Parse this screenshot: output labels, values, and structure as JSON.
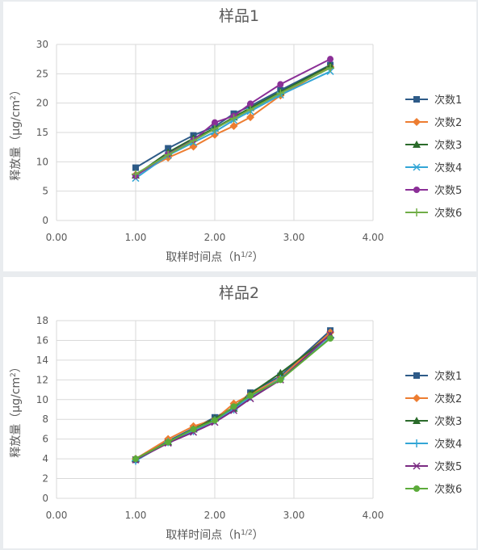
{
  "chart_data": [
    {
      "type": "line",
      "title": "样品1",
      "xlabel": "取样时间点（h1/2）",
      "ylabel": "释放量（μg/cm2）",
      "xlim": [
        0,
        4
      ],
      "ylim": [
        0,
        30
      ],
      "x_ticks": [
        "0.00",
        "1.00",
        "2.00",
        "3.00",
        "4.00"
      ],
      "y_ticks": [
        "0",
        "5",
        "10",
        "15",
        "20",
        "25",
        "30"
      ],
      "grid": true,
      "legend_position": "right",
      "x": [
        1.0,
        1.41,
        1.73,
        2.0,
        2.24,
        2.45,
        2.83,
        3.46
      ],
      "series": [
        {
          "name": "次数1",
          "color": "#2e5b88",
          "marker": "square",
          "values": [
            9.0,
            12.3,
            14.5,
            16.0,
            18.2,
            19.5,
            22.2,
            26.5
          ]
        },
        {
          "name": "次数2",
          "color": "#ed7d31",
          "marker": "diamond",
          "values": [
            7.8,
            10.7,
            12.6,
            14.6,
            16.1,
            17.6,
            21.3,
            26.2
          ]
        },
        {
          "name": "次数3",
          "color": "#2b6b2b",
          "marker": "triangle",
          "values": [
            7.7,
            11.6,
            14.0,
            15.7,
            17.6,
            19.2,
            21.9,
            26.4
          ]
        },
        {
          "name": "次数4",
          "color": "#33a6d6",
          "marker": "x",
          "values": [
            7.2,
            11.1,
            13.3,
            15.1,
            17.1,
            18.6,
            21.4,
            25.4
          ]
        },
        {
          "name": "次数5",
          "color": "#8b2f97",
          "marker": "circle",
          "values": [
            7.6,
            11.3,
            13.7,
            16.7,
            17.8,
            19.9,
            23.2,
            27.5
          ]
        },
        {
          "name": "次数6",
          "color": "#70ad47",
          "marker": "plus",
          "values": [
            7.9,
            11.2,
            13.6,
            15.6,
            17.4,
            18.9,
            21.7,
            26.0
          ]
        }
      ]
    },
    {
      "type": "line",
      "title": "样品2",
      "xlabel": "取样时间点（h1/2）",
      "ylabel": "释放量（μg/cm2）",
      "xlim": [
        0,
        4
      ],
      "ylim": [
        0,
        18
      ],
      "x_ticks": [
        "0.00",
        "1.00",
        "2.00",
        "3.00",
        "4.00"
      ],
      "y_ticks": [
        "0",
        "2",
        "4",
        "6",
        "8",
        "10",
        "12",
        "14",
        "16",
        "18"
      ],
      "grid": true,
      "legend_position": "right",
      "x": [
        1.0,
        1.41,
        1.73,
        2.0,
        2.24,
        2.45,
        2.83,
        3.46
      ],
      "series": [
        {
          "name": "次数1",
          "color": "#2e5b88",
          "marker": "square",
          "values": [
            3.9,
            5.8,
            7.1,
            8.2,
            9.2,
            10.7,
            12.4,
            17.0
          ]
        },
        {
          "name": "次数2",
          "color": "#ed7d31",
          "marker": "diamond",
          "values": [
            4.0,
            6.0,
            7.3,
            8.0,
            9.6,
            10.5,
            12.2,
            16.8
          ]
        },
        {
          "name": "次数3",
          "color": "#2b6b2b",
          "marker": "triangle",
          "values": [
            4.0,
            5.7,
            7.0,
            8.1,
            9.1,
            10.6,
            12.7,
            16.5
          ]
        },
        {
          "name": "次数4",
          "color": "#33a6d6",
          "marker": "plus",
          "values": [
            3.8,
            5.7,
            6.8,
            7.9,
            9.0,
            10.3,
            12.1,
            16.3
          ]
        },
        {
          "name": "次数5",
          "color": "#7b2c83",
          "marker": "x",
          "values": [
            3.9,
            5.6,
            6.7,
            7.7,
            8.9,
            10.1,
            12.0,
            16.6
          ]
        },
        {
          "name": "次数6",
          "color": "#5cab3a",
          "marker": "circle",
          "values": [
            4.0,
            5.7,
            7.0,
            7.9,
            9.3,
            10.4,
            12.0,
            16.2
          ]
        }
      ]
    }
  ]
}
